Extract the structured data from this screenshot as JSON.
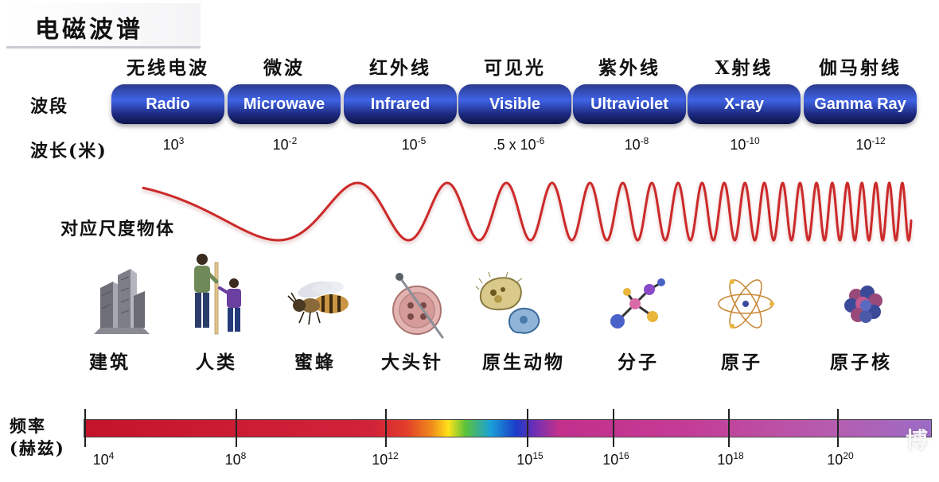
{
  "title": "电磁波谱",
  "row_labels": {
    "band": "波段",
    "wavelength": "波长(米)",
    "scale_objects": "对应尺度物体",
    "frequency": "频率\n(赫兹)"
  },
  "bands": [
    {
      "cn": "无线电波",
      "en": "Radio",
      "wl_base": "10",
      "wl_exp": "3"
    },
    {
      "cn": "微波",
      "en": "Microwave",
      "wl_base": "10",
      "wl_exp": "-2"
    },
    {
      "cn": "红外线",
      "en": "Infrared",
      "wl_base": "10",
      "wl_exp": "-5"
    },
    {
      "cn": "可见光",
      "en": "Visible",
      "wl_base": ".5 x 10",
      "wl_exp": "-6"
    },
    {
      "cn": "紫外线",
      "en": "Ultraviolet",
      "wl_base": "10",
      "wl_exp": "-8"
    },
    {
      "cn": "X射线",
      "en": "X-ray",
      "wl_base": "10",
      "wl_exp": "-10"
    },
    {
      "cn": "伽马射线",
      "en": "Gamma Ray",
      "wl_base": "10",
      "wl_exp": "-12"
    }
  ],
  "objects": [
    {
      "label": "建筑",
      "icon": "building-icon"
    },
    {
      "label": "人类",
      "icon": "human-icon"
    },
    {
      "label": "蜜蜂",
      "icon": "bee-icon"
    },
    {
      "label": "大头针",
      "icon": "pin-icon"
    },
    {
      "label": "原生动物",
      "icon": "protozoa-icon"
    },
    {
      "label": "分子",
      "icon": "molecule-icon"
    },
    {
      "label": "原子",
      "icon": "atom-icon"
    },
    {
      "label": "原子核",
      "icon": "nucleus-icon"
    }
  ],
  "frequency_ticks": [
    {
      "base": "10",
      "exp": "4"
    },
    {
      "base": "10",
      "exp": "8"
    },
    {
      "base": "10",
      "exp": "12"
    },
    {
      "base": "10",
      "exp": "15"
    },
    {
      "base": "10",
      "exp": "16"
    },
    {
      "base": "10",
      "exp": "18"
    },
    {
      "base": "10",
      "exp": "20"
    }
  ],
  "watermark": "博",
  "colors": {
    "wave": "#cc2a2a",
    "pill_mid": "#3f63e6",
    "pill_dark": "#0d1548"
  }
}
